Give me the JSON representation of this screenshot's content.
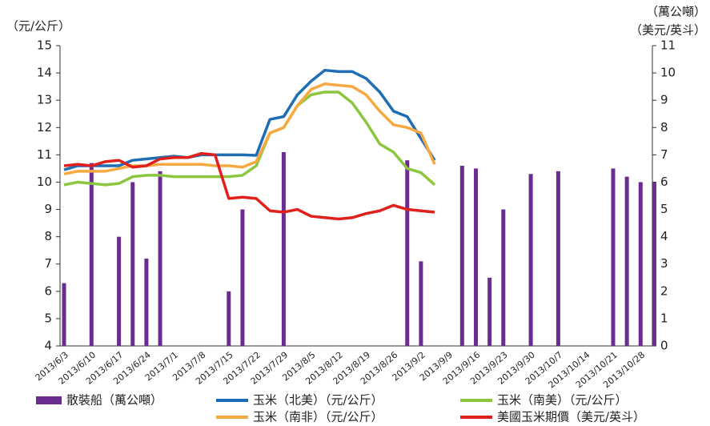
{
  "chart_data": {
    "type": "bar",
    "y_label": "（元/公斤）",
    "y2_label": [
      "（萬公噸）",
      "（美元/英斗）"
    ],
    "categories": [
      "2013/6/3",
      null,
      "2013/6/10",
      null,
      "2013/6/17",
      null,
      "2013/6/24",
      null,
      "2013/7/1",
      null,
      "2013/7/8",
      null,
      "2013/7/15",
      null,
      "2013/7/22",
      null,
      "2013/7/29",
      null,
      "2013/8/5",
      null,
      "2013/8/12",
      null,
      "2013/8/19",
      null,
      "2013/8/26",
      null,
      "2013/9/2",
      null,
      "2013/9/9",
      null,
      "2013/9/16",
      null,
      "2013/9/23",
      null,
      "2013/9/30",
      null,
      "2013/10/7",
      null,
      "2013/10/14",
      null,
      "2013/10/21",
      null,
      "2013/10/28",
      null
    ],
    "ylim": [
      4,
      15
    ],
    "yticks": [
      4,
      5,
      6,
      7,
      8,
      9,
      10,
      11,
      12,
      13,
      14,
      15
    ],
    "y2lim": [
      0,
      11
    ],
    "y2ticks": [
      0,
      1,
      2,
      3,
      4,
      5,
      6,
      7,
      8,
      9,
      10,
      11
    ],
    "series": [
      {
        "name": "散裝船（萬公噸）",
        "type": "bar",
        "axis": "y2",
        "color": "#6a2c91",
        "values": [
          2.3,
          null,
          6.7,
          null,
          4,
          6,
          3.2,
          6.4,
          null,
          null,
          null,
          null,
          2,
          5,
          null,
          null,
          7.1,
          null,
          null,
          null,
          null,
          null,
          null,
          null,
          null,
          6.8,
          3.1,
          null,
          null,
          6.6,
          6.5,
          2.5,
          5,
          null,
          6.3,
          null,
          6.4,
          null,
          null,
          null,
          6.5,
          6.2,
          6,
          6
        ]
      },
      {
        "name": "玉米（北美）（元/公斤）",
        "type": "line",
        "color": "#1f6db5",
        "values": [
          10.45,
          10.6,
          10.6,
          10.6,
          10.6,
          10.8,
          10.85,
          10.9,
          10.95,
          10.9,
          11.0,
          11.0,
          11.0,
          11.0,
          10.98,
          12.3,
          12.4,
          13.2,
          13.7,
          14.1,
          14.05,
          14.05,
          13.8,
          13.3,
          12.6,
          12.4,
          11.6,
          10.8,
          null,
          null,
          null,
          null,
          null,
          null,
          null,
          null,
          null,
          null,
          null,
          null,
          null,
          null,
          null,
          null
        ]
      },
      {
        "name": "玉米（南美）（元/公斤）",
        "type": "line",
        "color": "#8cc63f",
        "values": [
          9.9,
          10.0,
          9.95,
          9.9,
          9.95,
          10.2,
          10.25,
          10.25,
          10.2,
          10.2,
          10.2,
          10.2,
          10.2,
          10.25,
          10.6,
          11.8,
          12.0,
          12.8,
          13.2,
          13.3,
          13.3,
          12.9,
          12.2,
          11.4,
          11.1,
          10.5,
          10.35,
          9.9,
          null,
          null,
          null,
          null,
          null,
          null,
          null,
          null,
          null,
          null,
          null,
          null,
          null,
          null,
          null,
          null
        ]
      },
      {
        "name": "玉米（南非）（元/公斤）",
        "type": "line",
        "color": "#f7a941",
        "values": [
          10.3,
          10.4,
          10.4,
          10.4,
          10.5,
          10.6,
          10.6,
          10.65,
          10.65,
          10.65,
          10.65,
          10.6,
          10.6,
          10.55,
          10.75,
          11.8,
          12.0,
          12.8,
          13.4,
          13.6,
          13.55,
          13.5,
          13.2,
          12.6,
          12.1,
          12.0,
          11.8,
          10.65,
          null,
          null,
          null,
          null,
          null,
          null,
          null,
          null,
          null,
          null,
          null,
          null,
          null,
          null,
          null,
          null
        ]
      },
      {
        "name": "美國玉米期價（美元/英斗）",
        "type": "line",
        "axis": "y2",
        "color": "#e0201b",
        "values": [
          6.6,
          6.65,
          6.6,
          6.75,
          6.8,
          6.55,
          6.6,
          6.85,
          6.9,
          6.9,
          7.05,
          7.0,
          5.4,
          5.45,
          5.4,
          4.95,
          4.9,
          5.0,
          4.75,
          4.7,
          4.65,
          4.7,
          4.85,
          4.95,
          5.15,
          5.0,
          4.95,
          4.9,
          null,
          null,
          null,
          null,
          null,
          null,
          null,
          null,
          null,
          null,
          null,
          null,
          null,
          null,
          null,
          null
        ]
      }
    ]
  }
}
